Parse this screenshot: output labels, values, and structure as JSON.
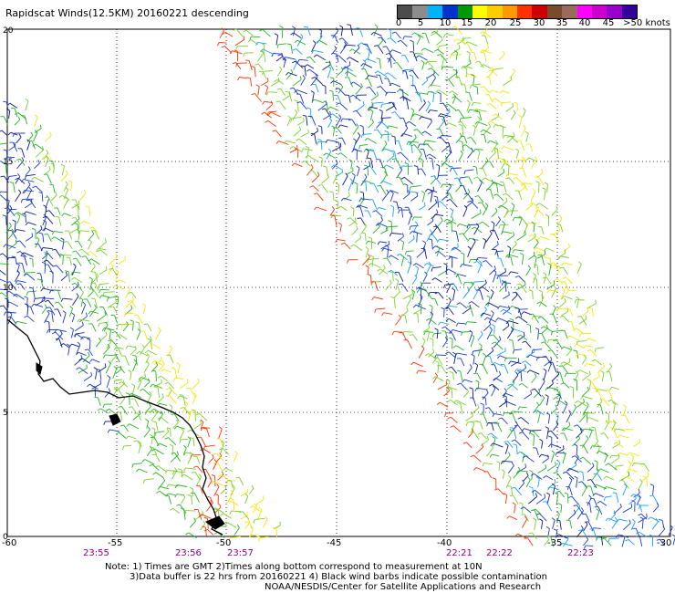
{
  "title": "Rapidscat Winds(12.5KM) 20160221 descending",
  "legend": {
    "colors": [
      "#4d4d4d",
      "#8c8c8c",
      "#00b3ff",
      "#0033cc",
      "#009900",
      "#ffff00",
      "#ffcc00",
      "#ff9900",
      "#ff3300",
      "#cc0000",
      "#7a4a2a",
      "#9a6a5a",
      "#ff00ff",
      "#cc00cc",
      "#9900cc",
      "#330099"
    ],
    "labels": [
      "0",
      "5",
      "10",
      "15",
      "20",
      "25",
      "30",
      "35",
      "40",
      "45",
      ">50 knots"
    ]
  },
  "axes": {
    "y_ticks": [
      "20",
      "15",
      "10",
      "5",
      "0"
    ],
    "x_ticks": [
      "-60",
      "-55",
      "-50",
      "-45",
      "-40",
      "-35",
      "-30"
    ]
  },
  "times": [
    "23:55",
    "23:56",
    "23:57",
    "22:21",
    "22:22",
    "22:23"
  ],
  "notes": [
    "Note: 1) Times are GMT 2)Times along bottom correspond to measurement at 10N",
    "3)Data buffer is 22 hrs from 20160221 4) Black wind barbs indicate possible contamination",
    "NOAA/NESDIS/Center for Satellite Applications and Research"
  ],
  "map_extent": {
    "lon": [
      -60,
      -30
    ],
    "lat": [
      0,
      20
    ]
  }
}
